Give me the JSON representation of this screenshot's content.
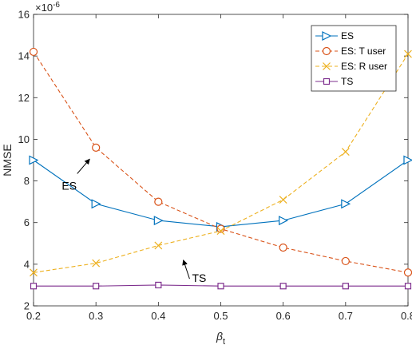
{
  "chart_data": {
    "type": "line",
    "xlabel_base": "β",
    "xlabel_sub": "t",
    "ylabel": "NMSE",
    "y_exponent": "×10",
    "y_exponent_power": "-6",
    "xlim": [
      0.2,
      0.8
    ],
    "ylim": [
      2,
      16
    ],
    "xticks": [
      "0.2",
      "0.3",
      "0.4",
      "0.5",
      "0.6",
      "0.7",
      "0.8"
    ],
    "yticks": [
      "2",
      "4",
      "6",
      "8",
      "10",
      "12",
      "14",
      "16"
    ],
    "x": [
      0.2,
      0.3,
      0.4,
      0.5,
      0.6,
      0.7,
      0.8
    ],
    "legend_position": "top-right",
    "series": [
      {
        "name": "ES",
        "color": "#0072BD",
        "dash": "solid",
        "marker": "triangle-right",
        "values": [
          9.0,
          6.9,
          6.1,
          5.8,
          6.1,
          6.9,
          9.0
        ]
      },
      {
        "name": "ES: T user",
        "color": "#D95319",
        "dash": "dashed",
        "marker": "circle",
        "values": [
          14.2,
          9.6,
          7.0,
          5.7,
          4.8,
          4.15,
          3.6
        ]
      },
      {
        "name": "ES: R user",
        "color": "#EDB120",
        "dash": "dashed",
        "marker": "x",
        "values": [
          3.6,
          4.05,
          4.9,
          5.6,
          7.1,
          9.4,
          14.1
        ]
      },
      {
        "name": "TS",
        "color": "#7E2F8E",
        "dash": "solid",
        "marker": "square",
        "values": [
          2.95,
          2.95,
          3.0,
          2.95,
          2.95,
          2.95,
          2.95
        ]
      }
    ],
    "annotations": [
      {
        "text": "ES",
        "arrow_from": [
          0.27,
          8.35
        ],
        "arrow_to": [
          0.29,
          9.05
        ]
      },
      {
        "text": "TS",
        "arrow_from": [
          0.45,
          3.3
        ],
        "arrow_to": [
          0.44,
          4.2
        ]
      }
    ]
  }
}
